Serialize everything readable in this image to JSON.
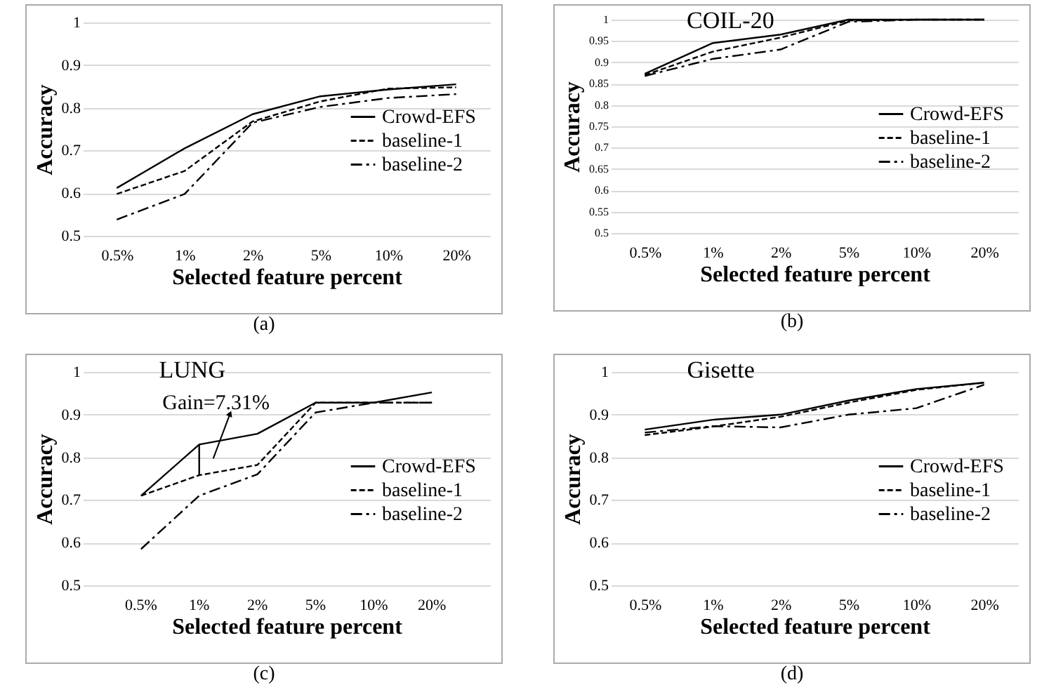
{
  "chart_data": [
    {
      "type": "line",
      "xlabel": "Selected feature percent",
      "ylabel": "Accuracy",
      "categories": [
        "0.5%",
        "1%",
        "2%",
        "5%",
        "10%",
        "20%"
      ],
      "ylim": [
        0.5,
        1
      ],
      "yticks": [
        0.5,
        0.6,
        0.7,
        0.8,
        0.9,
        1
      ],
      "grid": "y",
      "legend": "right",
      "marker": "none",
      "annotations": [
        "(a)"
      ],
      "series": [
        {
          "name": "Crowd-EFS",
          "color": "#000000",
          "line_style": "solid",
          "values": [
            0.612,
            0.705,
            0.785,
            0.827,
            0.843,
            0.855
          ]
        },
        {
          "name": "baseline-1",
          "color": "#000000",
          "line_style": "dashed",
          "values": [
            0.598,
            0.652,
            0.768,
            0.815,
            0.845,
            0.848
          ]
        },
        {
          "name": "baseline-2",
          "color": "#000000",
          "line_style": "dotted",
          "values": [
            0.538,
            0.598,
            0.765,
            0.802,
            0.823,
            0.832
          ]
        }
      ]
    },
    {
      "type": "line",
      "title": "COIL-20",
      "xlabel": "Selected feature percent",
      "ylabel": "Accuracy",
      "categories": [
        "0.5%",
        "1%",
        "2%",
        "5%",
        "10%",
        "20%"
      ],
      "ylim": [
        0.5,
        1
      ],
      "yticks": [
        0.5,
        0.55,
        0.6,
        0.65,
        0.7,
        0.75,
        0.8,
        0.85,
        0.9,
        0.95,
        1
      ],
      "grid": "y",
      "legend": "right",
      "marker": "none",
      "annotations": [
        "(b)"
      ],
      "series": [
        {
          "name": "Crowd-EFS",
          "color": "#000000",
          "line_style": "solid",
          "values": [
            0.873,
            0.945,
            0.965,
            1,
            1,
            1
          ]
        },
        {
          "name": "baseline-1",
          "color": "#000000",
          "line_style": "dashed",
          "values": [
            0.87,
            0.925,
            0.958,
            0.998,
            1,
            1
          ]
        },
        {
          "name": "baseline-2",
          "color": "#000000",
          "line_style": "dotted",
          "values": [
            0.868,
            0.908,
            0.93,
            0.995,
            1,
            1
          ]
        }
      ]
    },
    {
      "type": "line",
      "title": "LUNG",
      "xlabel": "Selected feature percent",
      "ylabel": "Accuracy",
      "categories": [
        "0.5%",
        "1%",
        "2%",
        "5%",
        "10%",
        "20%"
      ],
      "ylim": [
        0.5,
        1
      ],
      "yticks": [
        0.5,
        0.6,
        0.7,
        0.8,
        0.9,
        1
      ],
      "grid": "y",
      "legend": "right",
      "marker": "none",
      "annotations": [
        {
          "text": "Gain=7.31%",
          "x": "1%",
          "y": 0.83
        },
        "(c)"
      ],
      "series": [
        {
          "name": "Crowd-EFS",
          "color": "#000000",
          "line_style": "solid",
          "values": [
            0.71,
            0.83,
            0.855,
            0.928,
            0.928,
            0.952
          ]
        },
        {
          "name": "baseline-1",
          "color": "#000000",
          "line_style": "dashed",
          "values": [
            0.71,
            0.758,
            0.782,
            0.928,
            0.928,
            0.928
          ]
        },
        {
          "name": "baseline-2",
          "color": "#000000",
          "line_style": "dotted",
          "values": [
            0.585,
            0.71,
            0.76,
            0.905,
            0.928,
            0.928
          ]
        }
      ]
    },
    {
      "type": "line",
      "title": "Gisette",
      "xlabel": "Selected feature percent",
      "ylabel": "Accuracy",
      "categories": [
        "0.5%",
        "1%",
        "2%",
        "5%",
        "10%",
        "20%"
      ],
      "ylim": [
        0.5,
        1
      ],
      "yticks": [
        0.5,
        0.6,
        0.7,
        0.8,
        0.9,
        1
      ],
      "grid": "y",
      "legend": "right",
      "marker": "none",
      "annotations": [
        "(d)"
      ],
      "series": [
        {
          "name": "Crowd-EFS",
          "color": "#000000",
          "line_style": "solid",
          "values": [
            0.865,
            0.888,
            0.9,
            0.933,
            0.96,
            0.975
          ]
        },
        {
          "name": "baseline-1",
          "color": "#000000",
          "line_style": "dashed",
          "values": [
            0.852,
            0.872,
            0.895,
            0.928,
            0.958,
            0.975
          ]
        },
        {
          "name": "baseline-2",
          "color": "#000000",
          "line_style": "dotted",
          "values": [
            0.858,
            0.873,
            0.87,
            0.9,
            0.915,
            0.97
          ]
        }
      ]
    }
  ]
}
